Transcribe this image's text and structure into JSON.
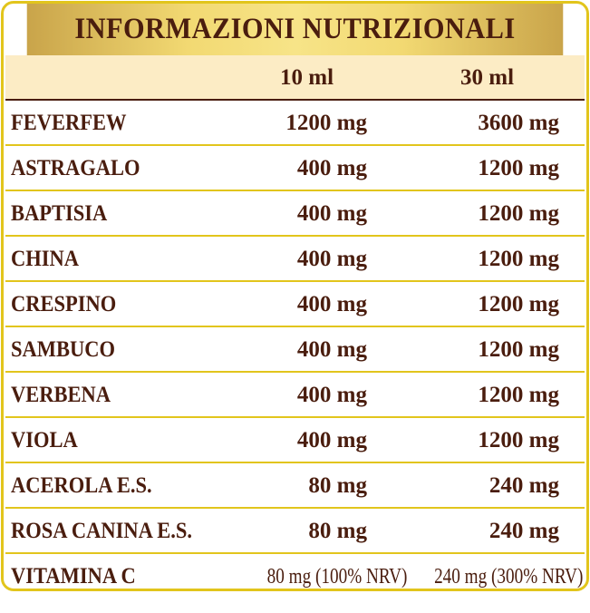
{
  "title": "INFORMAZIONI NUTRIZIONALI",
  "columns": [
    "10 ml",
    "30 ml"
  ],
  "rows": [
    {
      "name": "FEVERFEW",
      "v10": "1200 mg",
      "v30": "3600 mg"
    },
    {
      "name": "ASTRAGALO",
      "v10": "400 mg",
      "v30": "1200 mg"
    },
    {
      "name": "BAPTISIA",
      "v10": "400 mg",
      "v30": "1200 mg"
    },
    {
      "name": "CHINA",
      "v10": "400 mg",
      "v30": "1200 mg"
    },
    {
      "name": "CRESPINO",
      "v10": "400 mg",
      "v30": "1200 mg"
    },
    {
      "name": "SAMBUCO",
      "v10": "400 mg",
      "v30": "1200 mg"
    },
    {
      "name": "VERBENA",
      "v10": "400 mg",
      "v30": "1200 mg"
    },
    {
      "name": "VIOLA",
      "v10": "400 mg",
      "v30": "1200 mg"
    },
    {
      "name": "ACEROLA E.S.",
      "v10": "80 mg",
      "v30": "240 mg"
    },
    {
      "name": "ROSA CANINA E.S.",
      "v10": "80 mg",
      "v30": "240 mg"
    },
    {
      "name": "VITAMINA C",
      "v10": "80 mg (100% NRV)",
      "v30": "240 mg (300% NRV)"
    }
  ],
  "colors": {
    "text": "#4a1d0e",
    "border": "#e2c51c",
    "header_bg": "#fcecc5"
  }
}
